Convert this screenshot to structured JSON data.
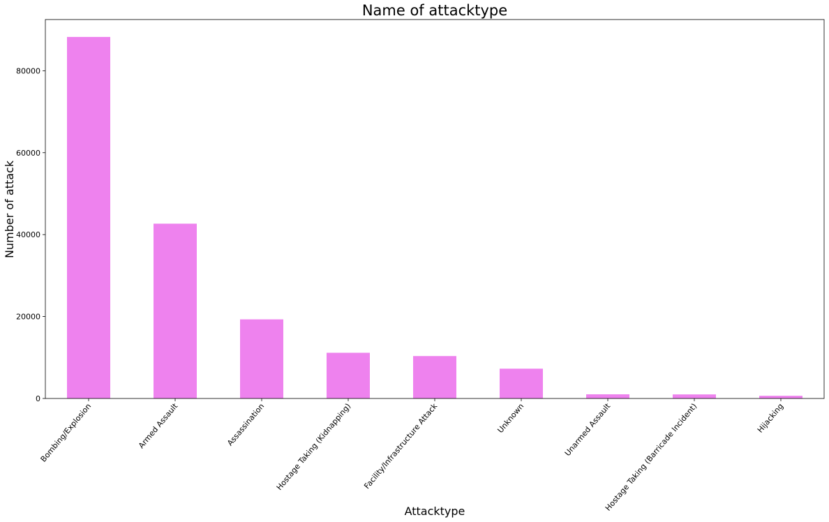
{
  "chart_data": {
    "type": "bar",
    "title": "Name of attacktype",
    "xlabel": "Attacktype",
    "ylabel": "Number of attack",
    "categories": [
      "Bombing/Explosion",
      "Armed Assault",
      "Assassination",
      "Hostage Taking (Kidnapping)",
      "Facility/Infrastructure Attack",
      "Unknown",
      "Unarmed Assault",
      "Hostage Taking (Barricade Incident)",
      "Hijacking"
    ],
    "values": [
      88255,
      42669,
      19312,
      11158,
      10356,
      7276,
      1015,
      991,
      659
    ],
    "ylim": [
      0,
      92500
    ],
    "yticks": [
      0,
      20000,
      40000,
      60000,
      80000
    ],
    "ytick_labels": [
      "0",
      "20000",
      "40000",
      "60000",
      "80000"
    ],
    "bar_color": "#ee82ee",
    "grid": false,
    "legend": false
  }
}
